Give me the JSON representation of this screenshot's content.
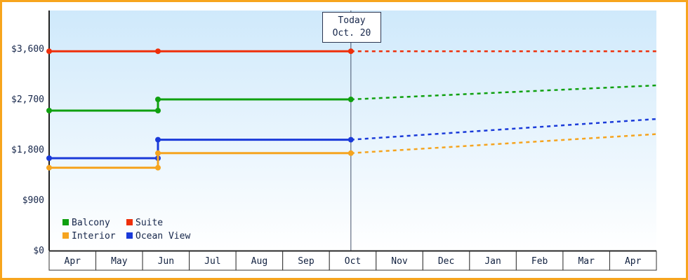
{
  "chart_data": {
    "type": "line",
    "x_months": [
      "Apr",
      "May",
      "Jun",
      "Jul",
      "Aug",
      "Sep",
      "Oct",
      "Nov",
      "Dec",
      "Jan",
      "Feb",
      "Mar",
      "Apr"
    ],
    "y_ticks": [
      {
        "value": 0,
        "label": "$0"
      },
      {
        "value": 900,
        "label": "$900"
      },
      {
        "value": 1800,
        "label": "$1,800"
      },
      {
        "value": 2700,
        "label": "$2,700"
      },
      {
        "value": 3600,
        "label": "$3,600"
      }
    ],
    "ylim": [
      0,
      4290
    ],
    "today": {
      "t": 6.46,
      "line1": "Today",
      "line2": "Oct. 20"
    },
    "series": [
      {
        "name": "Suite",
        "color": "#ee2f0a",
        "points": [
          [
            0,
            3560
          ],
          [
            2.33,
            3560
          ],
          [
            6.46,
            3560
          ]
        ],
        "markers": [
          [
            0,
            3560
          ],
          [
            2.33,
            3560
          ],
          [
            6.46,
            3560
          ]
        ],
        "forecast_end": 3560
      },
      {
        "name": "Balcony",
        "color": "#0fa00f",
        "points": [
          [
            0,
            2500
          ],
          [
            2.33,
            2500
          ],
          [
            2.33,
            2700
          ],
          [
            6.46,
            2700
          ]
        ],
        "markers": [
          [
            0,
            2500
          ],
          [
            2.33,
            2500
          ],
          [
            2.33,
            2700
          ],
          [
            6.46,
            2700
          ]
        ],
        "forecast_end": 2950
      },
      {
        "name": "Ocean View",
        "color": "#1a3ad9",
        "points": [
          [
            0,
            1650
          ],
          [
            2.33,
            1650
          ],
          [
            2.33,
            1980
          ],
          [
            6.46,
            1980
          ]
        ],
        "markers": [
          [
            0,
            1650
          ],
          [
            2.33,
            1650
          ],
          [
            2.33,
            1980
          ],
          [
            6.46,
            1980
          ]
        ],
        "forecast_end": 2350
      },
      {
        "name": "Interior",
        "color": "#f5a41f",
        "points": [
          [
            0,
            1480
          ],
          [
            2.33,
            1480
          ],
          [
            2.33,
            1740
          ],
          [
            6.46,
            1740
          ]
        ],
        "markers": [
          [
            0,
            1480
          ],
          [
            2.33,
            1480
          ],
          [
            2.33,
            1740
          ],
          [
            6.46,
            1740
          ]
        ],
        "forecast_end": 2080
      }
    ],
    "legend": {
      "items": [
        {
          "label": "Balcony",
          "color": "#0fa00f"
        },
        {
          "label": "Suite",
          "color": "#ee2f0a"
        },
        {
          "label": "Interior",
          "color": "#f5a41f"
        },
        {
          "label": "Ocean View",
          "color": "#1a3ad9"
        }
      ]
    },
    "colors": {
      "bg_top": "#cfe9fb",
      "bg_bottom": "#ffffff",
      "frame_border": "#f7a51d",
      "axis": "#222222",
      "text": "#16264a",
      "today_line": "#44506a"
    }
  }
}
